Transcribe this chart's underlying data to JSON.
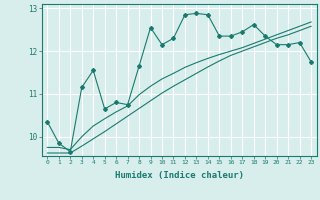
{
  "xlabel": "Humidex (Indice chaleur)",
  "bg_color": "#d8eeed",
  "grid_color": "#ffffff",
  "line_color": "#1a7a6e",
  "xlim": [
    -0.5,
    23.5
  ],
  "ylim": [
    9.55,
    13.1
  ],
  "yticks": [
    10,
    11,
    12,
    13
  ],
  "xticks": [
    0,
    1,
    2,
    3,
    4,
    5,
    6,
    7,
    8,
    9,
    10,
    11,
    12,
    13,
    14,
    15,
    16,
    17,
    18,
    19,
    20,
    21,
    22,
    23
  ],
  "line1_x": [
    0,
    1,
    2,
    3,
    4,
    5,
    6,
    7,
    8,
    9,
    10,
    11,
    12,
    13,
    14,
    15,
    16,
    17,
    18,
    19,
    20,
    21,
    22,
    23
  ],
  "line1_y": [
    10.35,
    9.85,
    9.65,
    11.15,
    11.55,
    10.65,
    10.8,
    10.75,
    11.65,
    12.55,
    12.15,
    12.3,
    12.85,
    12.88,
    12.85,
    12.35,
    12.35,
    12.45,
    12.62,
    12.35,
    12.15,
    12.15,
    12.2,
    11.75
  ],
  "line2_x": [
    0,
    1,
    2,
    3,
    4,
    5,
    6,
    7,
    8,
    9,
    10,
    11,
    12,
    13,
    14,
    15,
    16,
    17,
    18,
    19,
    20,
    21,
    22,
    23
  ],
  "line2_y": [
    9.75,
    9.75,
    9.7,
    10.0,
    10.25,
    10.42,
    10.58,
    10.72,
    10.98,
    11.18,
    11.35,
    11.48,
    11.62,
    11.73,
    11.83,
    11.92,
    12.0,
    12.08,
    12.18,
    12.28,
    12.38,
    12.48,
    12.58,
    12.68
  ],
  "line3_x": [
    0,
    1,
    2,
    3,
    4,
    5,
    6,
    7,
    8,
    9,
    10,
    11,
    12,
    13,
    14,
    15,
    16,
    17,
    18,
    19,
    20,
    21,
    22,
    23
  ],
  "line3_y": [
    9.62,
    9.62,
    9.62,
    9.78,
    9.95,
    10.12,
    10.3,
    10.48,
    10.66,
    10.84,
    11.02,
    11.18,
    11.33,
    11.48,
    11.63,
    11.77,
    11.9,
    12.0,
    12.1,
    12.2,
    12.3,
    12.38,
    12.48,
    12.58
  ]
}
